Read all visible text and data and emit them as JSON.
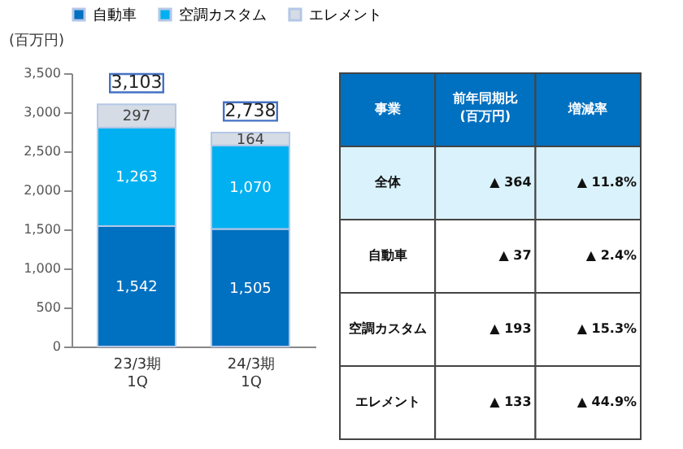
{
  "chart_data": [
    {
      "type": "bar",
      "stacked": true,
      "ylabel": "(百万円)",
      "categories": [
        "23/3期\n1Q",
        "24/3期\n1Q"
      ],
      "series": [
        {
          "name": "自動車",
          "color": "#0070c0",
          "values": [
            1542,
            1505
          ]
        },
        {
          "name": "空調カスタム",
          "color": "#00b0f0",
          "values": [
            1263,
            1070
          ]
        },
        {
          "name": "エレメント",
          "color": "#d6dce5",
          "values": [
            297,
            164
          ]
        }
      ],
      "ylim": [
        0,
        3500
      ],
      "yticks": [
        0,
        {
          "value": 500,
          "label": "500"
        },
        {
          "value": 1000,
          "label": "1,000"
        },
        {
          "value": 1500,
          "label": "1,500"
        },
        {
          "value": 2000,
          "label": "2,000"
        },
        {
          "value": 2500,
          "label": "2,500"
        },
        {
          "value": 3000,
          "label": "3,000"
        },
        {
          "value": 3500,
          "label": "3,500"
        }
      ],
      "value_labels": [
        [
          "1,542",
          "1,505"
        ],
        [
          "1,263",
          "1,070"
        ],
        [
          "297",
          "164"
        ]
      ],
      "totals": [
        "3,103",
        "2,738"
      ],
      "legend": "top",
      "grid": false
    },
    {
      "type": "other",
      "annotations": [
        "事業",
        "前年同期比\n(百万円)",
        "増減率",
        "全体",
        "▲ 364",
        "▲ 11.8%",
        "自動車",
        "▲ 37",
        "▲ 2.4%",
        "空調カスタム",
        "▲ 193",
        "▲ 15.3%",
        "エレメント",
        "▲ 133",
        "▲ 44.9%"
      ]
    }
  ]
}
